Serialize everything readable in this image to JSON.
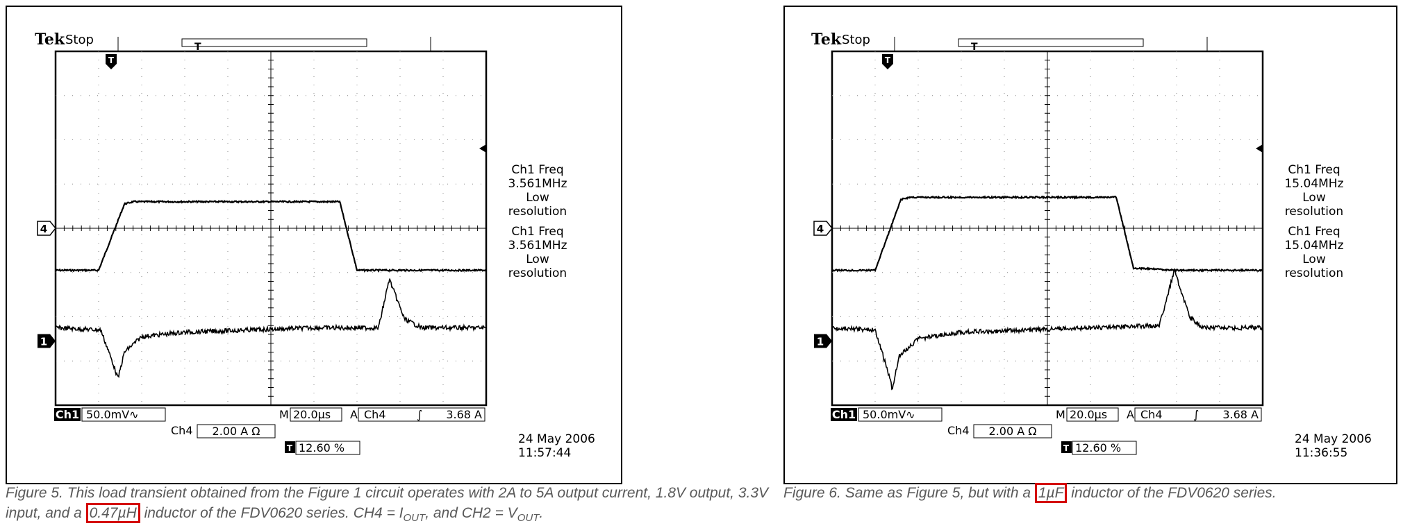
{
  "chart_data": [
    {
      "type": "line",
      "brand": "Tek",
      "status": "Stop",
      "trigger_marker": "T",
      "channel_markers": [
        "4",
        "1"
      ],
      "readouts": [
        {
          "lines": [
            "Ch1 Freq",
            "3.561MHz",
            "Low",
            "resolution"
          ]
        },
        {
          "lines": [
            "Ch1 Freq",
            "3.561MHz",
            "Low",
            "resolution"
          ]
        }
      ],
      "settings": {
        "ch1_tag": "Ch1",
        "ch1_scale": "50.0mV∿",
        "timebase_prefix": "M",
        "timebase": "20.0µs",
        "trigger_mode": "A",
        "trigger_source": "Ch4",
        "trigger_slope": "∫",
        "trigger_level": "3.68 A",
        "ch4_tag": "Ch4",
        "ch4_scale": "2.00 A Ω",
        "trigger_pos_icon": "T",
        "trigger_pos": "12.60 %"
      },
      "date": "24 May 2006",
      "time": "11:57:44",
      "divisions": {
        "x": 10,
        "y": 8
      },
      "series": [
        {
          "x_div": [
            0,
            1,
            1.6,
            1.8,
            6.3,
            6.6,
            7.0,
            8.0,
            10
          ],
          "y_div": [
            3.05,
            3.05,
            4.55,
            4.6,
            4.6,
            4.6,
            3.05,
            3.05,
            3.05
          ]
        },
        {
          "x_div": [
            0,
            1.05,
            1.35,
            1.45,
            1.6,
            2.0,
            3.0,
            6.0,
            7.5,
            7.75,
            8.1,
            8.5,
            10
          ],
          "y_div": [
            1.75,
            1.7,
            0.9,
            0.6,
            1.2,
            1.55,
            1.65,
            1.75,
            1.75,
            2.85,
            1.95,
            1.75,
            1.75
          ]
        }
      ]
    },
    {
      "type": "line",
      "brand": "Tek",
      "status": "Stop",
      "trigger_marker": "T",
      "channel_markers": [
        "4",
        "1"
      ],
      "readouts": [
        {
          "lines": [
            "Ch1 Freq",
            "15.04MHz",
            "Low",
            "resolution"
          ]
        },
        {
          "lines": [
            "Ch1 Freq",
            "15.04MHz",
            "Low",
            "resolution"
          ]
        }
      ],
      "settings": {
        "ch1_tag": "Ch1",
        "ch1_scale": "50.0mV∿",
        "timebase_prefix": "M",
        "timebase": "20.0µs",
        "trigger_mode": "A",
        "trigger_source": "Ch4",
        "trigger_slope": "∫",
        "trigger_level": "3.68 A",
        "ch4_tag": "Ch4",
        "ch4_scale": "2.00 A Ω",
        "trigger_pos_icon": "T",
        "trigger_pos": "12.60 %"
      },
      "date": "24 May 2006",
      "time": "11:36:55",
      "divisions": {
        "x": 10,
        "y": 8
      },
      "series": [
        {
          "x_div": [
            0,
            1,
            1.6,
            1.8,
            6.3,
            6.6,
            7.0,
            8.0,
            10
          ],
          "y_div": [
            3.05,
            3.05,
            4.65,
            4.7,
            4.7,
            4.7,
            3.1,
            3.05,
            3.05
          ]
        },
        {
          "x_div": [
            0,
            1.0,
            1.3,
            1.4,
            1.55,
            2.0,
            3.0,
            6.0,
            7.6,
            7.95,
            8.3,
            8.6,
            10
          ],
          "y_div": [
            1.75,
            1.7,
            0.75,
            0.35,
            1.1,
            1.5,
            1.65,
            1.75,
            1.8,
            3.05,
            2.0,
            1.75,
            1.75
          ]
        }
      ]
    }
  ],
  "captions": [
    {
      "text_before": "Figure 5. This load transient obtained from the Figure 1 circuit operates with 2A to 5A output current, 1.8V output, 3.3V input, and a ",
      "highlight": "0.47µH",
      "text_after": " inductor of the FDV0620 series. CH4 = I",
      "sub1": "OUT",
      "text_mid": ", and CH2 = V",
      "sub2": "OUT",
      "text_end": "."
    },
    {
      "text_before": "Figure 6. Same as Figure 5, but with a ",
      "highlight": "1µF",
      "text_after": " inductor of the FDV0620 series."
    }
  ]
}
